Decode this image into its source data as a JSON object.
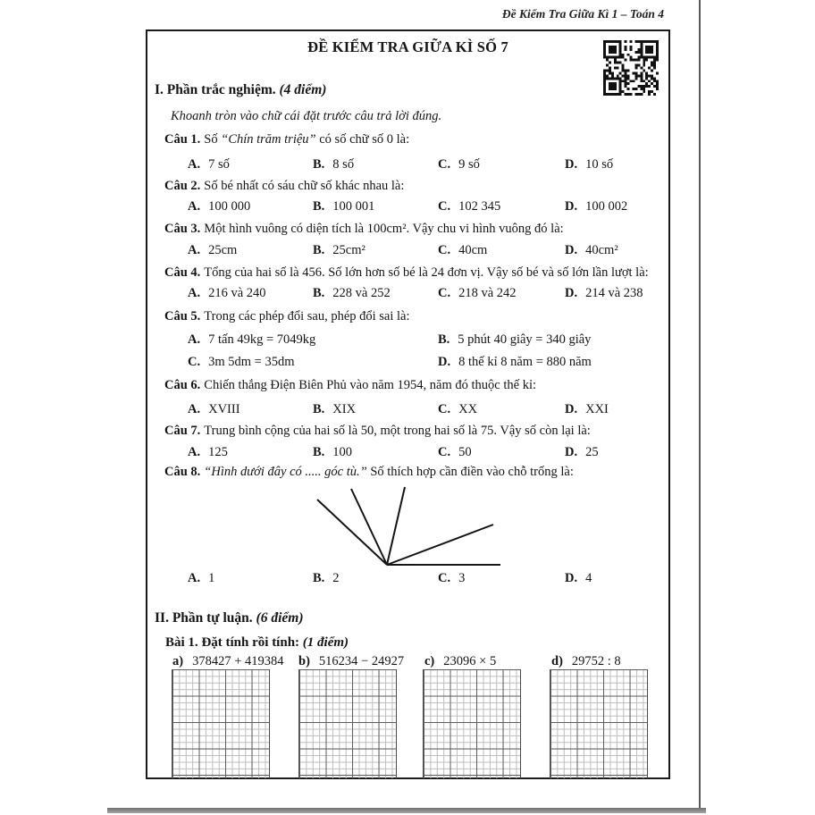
{
  "page": {
    "header": "Đề Kiểm Tra Giữa Kì 1 – Toán 4",
    "title": "ĐỀ KIỂM TRA GIỮA KÌ SỐ 7"
  },
  "labels": {
    "opt": [
      "A.",
      "B.",
      "C.",
      "D."
    ],
    "item": [
      "a)",
      "b)",
      "c)",
      "d)"
    ]
  },
  "section1": {
    "heading": "I. Phần trắc nghiệm.",
    "points": "(4 điểm)",
    "instruction": "Khoanh tròn vào chữ cái đặt trước câu trả lời đúng.",
    "q1": {
      "label": "Câu 1.",
      "pre": "Số ",
      "quote": "“Chín trăm triệu”",
      "post": " có số chữ số 0 là:",
      "options": [
        "7 số",
        "8 số",
        "9 số",
        "10 số"
      ]
    },
    "q2": {
      "label": "Câu 2.",
      "text": "Số bé nhất có sáu chữ số khác nhau là:",
      "options": [
        "100 000",
        "100 001",
        "102 345",
        "100 002"
      ]
    },
    "q3": {
      "label": "Câu 3.",
      "text": "Một hình vuông có diện tích là 100cm². Vậy chu vi hình vuông đó là:",
      "options": [
        "25cm",
        "25cm²",
        "40cm",
        "40cm²"
      ]
    },
    "q4": {
      "label": "Câu 4.",
      "text": "Tổng của hai số là 456. Số lớn hơn số bé là 24 đơn vị. Vậy số bé và số lớn lần lượt là:",
      "options": [
        "216 và 240",
        "228 và 252",
        "218 và 242",
        "214 và 238"
      ]
    },
    "q5": {
      "label": "Câu 5.",
      "text": "Trong các phép đổi sau, phép đổi sai là:",
      "options": [
        "7 tấn 49kg = 7049kg",
        "5 phút 40 giây = 340 giây",
        "3m 5dm = 35dm",
        "8 thế kỉ 8 năm = 880 năm"
      ]
    },
    "q6": {
      "label": "Câu 6.",
      "text": "Chiến thắng Điện Biên Phủ vào năm 1954, năm đó thuộc thế kỉ:",
      "options": [
        "XVIII",
        "XIX",
        "XX",
        "XXI"
      ]
    },
    "q7": {
      "label": "Câu 7.",
      "text": "Trung bình cộng của hai số là 50, một trong hai số là 75. Vậy số còn lại là:",
      "options": [
        "125",
        "100",
        "50",
        "25"
      ]
    },
    "q8": {
      "label": "Câu 8.",
      "quote": "“Hình dưới đây có ..... góc tù.”",
      "post": " Số thích hợp cần điền vào chỗ trống là:",
      "options": [
        "1",
        "2",
        "3",
        "4"
      ]
    }
  },
  "figure": {
    "rays": [
      [
        88,
        95,
        10,
        22
      ],
      [
        88,
        95,
        48,
        10
      ],
      [
        88,
        95,
        108,
        8
      ],
      [
        88,
        95,
        207,
        50
      ],
      [
        88,
        95,
        215,
        95
      ]
    ]
  },
  "section2": {
    "heading": "II. Phần tự luận.",
    "points": "(6 điểm)",
    "bai1": {
      "label": "Bài 1.",
      "text": "Đặt tính rồi tính:",
      "points": "(1 điểm)",
      "items": [
        "378427 + 419384",
        "516234 − 24927",
        "23096 × 5",
        "29752 : 8"
      ]
    }
  }
}
